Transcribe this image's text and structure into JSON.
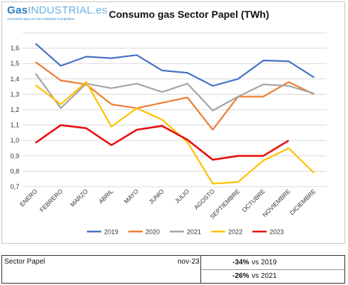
{
  "logo": {
    "gas": "Gas",
    "industrial": "INDUSTRIAL",
    "domain": ".es",
    "tagline": "Asociación para un Gas Industrial Competitivo"
  },
  "chart_data": {
    "type": "line",
    "title": "Consumo gas Sector Papel (TWh)",
    "xlabel": "",
    "ylabel": "",
    "categories": [
      "ENERO",
      "FEBRERO",
      "MARZO",
      "ABRIL",
      "MAYO",
      "JUNIO",
      "JULIO",
      "AGOSTO",
      "SEPTIEMBRE",
      "OCTUBRE",
      "NOVIEMBRE",
      "DICIEMBRE"
    ],
    "ylim": [
      0.7,
      1.7
    ],
    "yticks": [
      "0,7",
      "0,8",
      "0,9",
      "1,0",
      "1,1",
      "1,2",
      "1,3",
      "1,4",
      "1,5",
      "1,6"
    ],
    "ytick_values": [
      0.7,
      0.8,
      0.9,
      1.0,
      1.1,
      1.2,
      1.3,
      1.4,
      1.5,
      1.6
    ],
    "grid": true,
    "legend_position": "bottom",
    "series": [
      {
        "name": "2019",
        "color": "#4472c4",
        "values": [
          1.63,
          1.485,
          1.545,
          1.535,
          1.555,
          1.455,
          1.44,
          1.355,
          1.4,
          1.52,
          1.515,
          1.41
        ]
      },
      {
        "name": "2020",
        "color": "#ed7d31",
        "values": [
          1.51,
          1.39,
          1.365,
          1.235,
          1.21,
          1.245,
          1.28,
          1.07,
          1.285,
          1.285,
          1.38,
          1.3
        ]
      },
      {
        "name": "2021",
        "color": "#a5a5a5",
        "values": [
          1.435,
          1.21,
          1.37,
          1.34,
          1.37,
          1.315,
          1.37,
          1.195,
          1.285,
          1.365,
          1.355,
          1.305
        ]
      },
      {
        "name": "2022",
        "color": "#ffc000",
        "values": [
          1.36,
          1.235,
          1.38,
          1.09,
          1.21,
          1.135,
          0.99,
          0.72,
          0.73,
          0.87,
          0.95,
          0.79
        ]
      },
      {
        "name": "2023",
        "color": "#e81010",
        "values": [
          0.985,
          1.1,
          1.08,
          0.97,
          1.07,
          1.095,
          1.005,
          0.875,
          0.9,
          0.9,
          1.0,
          null
        ]
      }
    ]
  },
  "summary": {
    "sector": "Sector Papel",
    "period": "nov-23",
    "change1": "-34%",
    "vs1": "vs 2019",
    "change2": "-26%",
    "vs2": "vs 2021"
  }
}
